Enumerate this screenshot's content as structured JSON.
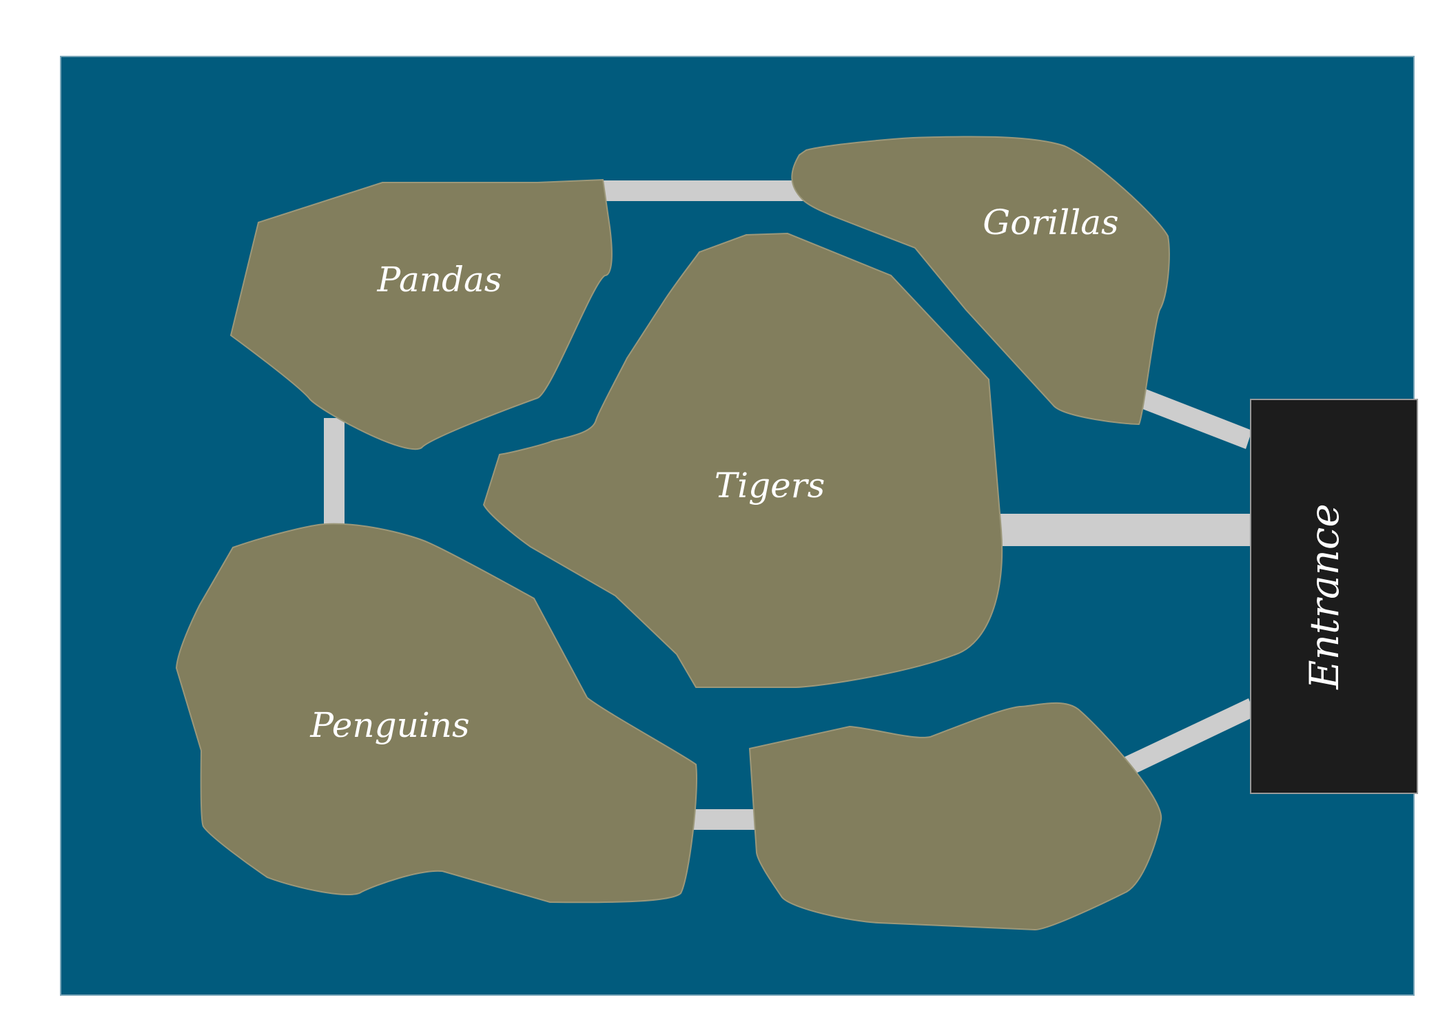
{
  "map": {
    "colors": {
      "water": "#015b7d",
      "enclosure": "#827e5d",
      "path": "#cdcdcd",
      "entrance": "#1c1c1c",
      "label": "#ffffff",
      "background": "#ffffff"
    },
    "enclosures": {
      "pandas": {
        "label": "Pandas"
      },
      "gorillas": {
        "label": "Gorillas"
      },
      "tigers": {
        "label": "Tigers"
      },
      "penguins": {
        "label": "Penguins"
      },
      "unlabeled": {
        "label": ""
      }
    },
    "entrance": {
      "label": "Entrance"
    }
  }
}
